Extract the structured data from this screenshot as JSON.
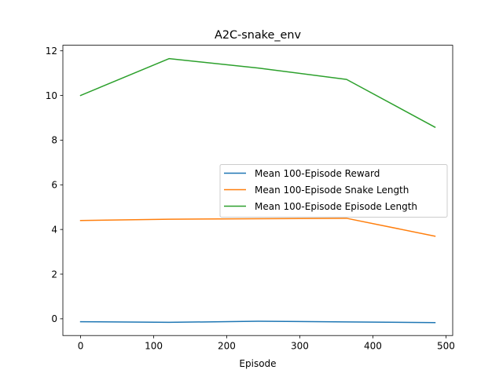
{
  "chart_data": {
    "type": "line",
    "title": "A2C-snake_env",
    "xlabel": "Episode",
    "ylabel": "",
    "xlim": [
      -24.25,
      509.25
    ],
    "ylim": [
      -0.75,
      12.25
    ],
    "xticks": [
      0,
      100,
      200,
      300,
      400,
      500
    ],
    "yticks": [
      0,
      2,
      4,
      6,
      8,
      10,
      12
    ],
    "legend_position": "center-right",
    "grid": false,
    "series": [
      {
        "name": "Mean 100-Episode Reward",
        "color": "#1f77b4",
        "x": [
          0,
          121,
          243,
          364,
          485
        ],
        "y": [
          -0.13,
          -0.16,
          -0.11,
          -0.14,
          -0.17
        ]
      },
      {
        "name": "Mean 100-Episode Snake Length",
        "color": "#ff7f0e",
        "x": [
          0,
          121,
          243,
          364,
          485
        ],
        "y": [
          4.4,
          4.46,
          4.48,
          4.5,
          3.7
        ]
      },
      {
        "name": "Mean 100-Episode Episode Length",
        "color": "#2ca02c",
        "x": [
          0,
          121,
          243,
          364,
          485
        ],
        "y": [
          10.0,
          11.65,
          11.23,
          10.72,
          8.58
        ]
      }
    ]
  }
}
